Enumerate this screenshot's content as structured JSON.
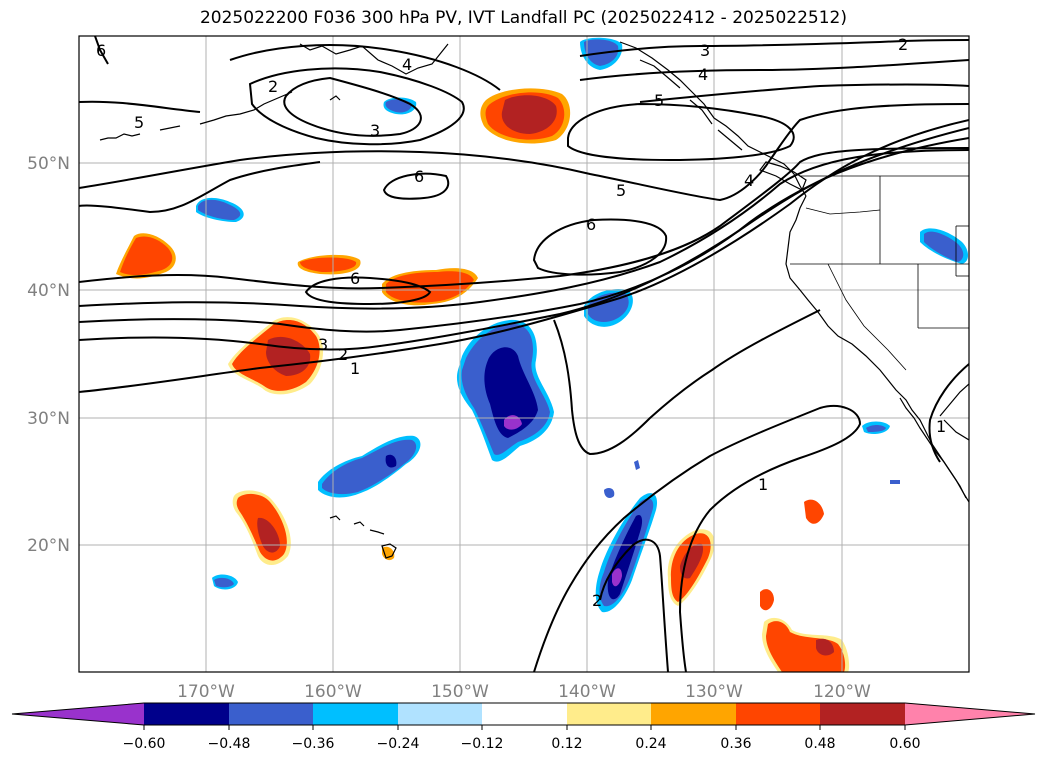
{
  "title": "2025022200 F036 300 hPa PV, IVT Landfall PC (2025022412 - 2025022512)",
  "map": {
    "lon_ticks": [
      "170°W",
      "160°W",
      "150°W",
      "140°W",
      "130°W",
      "120°W"
    ],
    "lat_ticks": [
      "20°N",
      "30°N",
      "40°N",
      "50°N"
    ],
    "contour_labels": [
      "6",
      "5",
      "2",
      "3",
      "4",
      "3",
      "4",
      "5",
      "2",
      "6",
      "5",
      "6",
      "4",
      "6",
      "3",
      "2",
      "1",
      "1",
      "2",
      "1"
    ],
    "colors": {
      "neg_extreme": "#9932cc",
      "neg_060": "#00008b",
      "neg_048": "#3a5fcd",
      "neg_036": "#00bfff",
      "neg_024": "#b0e2ff",
      "pos_024": "#ffec8b",
      "pos_036": "#ffa500",
      "pos_048": "#ff4500",
      "pos_060": "#b22222",
      "pos_extreme": "#ff82ab"
    }
  },
  "colorbar": {
    "ticks": [
      "−0.60",
      "−0.48",
      "−0.36",
      "−0.24",
      "−0.12",
      "0.12",
      "0.24",
      "0.36",
      "0.48",
      "0.60"
    ],
    "segments": [
      "#9932cc",
      "#00008b",
      "#3a5fcd",
      "#00bfff",
      "#b0e2ff",
      "#ffffff",
      "#ffec8b",
      "#ffa500",
      "#ff4500",
      "#b22222",
      "#ff82ab"
    ]
  }
}
